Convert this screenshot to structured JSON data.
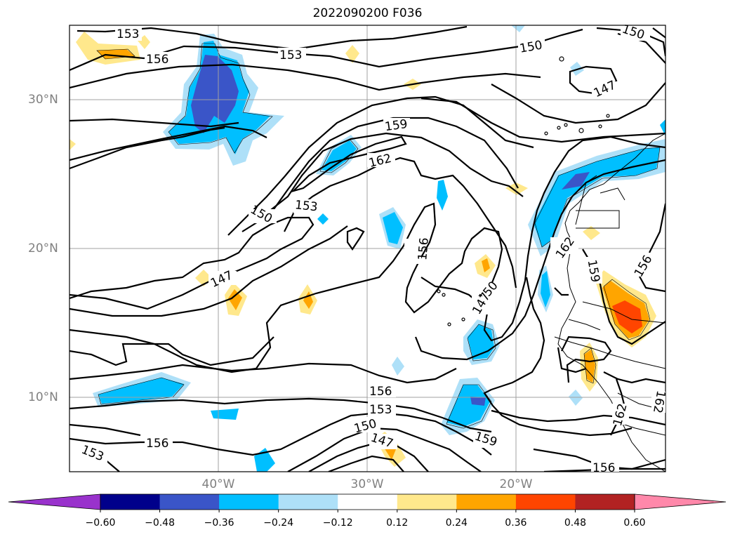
{
  "title": "2022090200 F036",
  "lat_labels": [
    "30°N",
    "20°N",
    "10°N"
  ],
  "lon_labels": [
    "40°W",
    "30°W",
    "20°W"
  ],
  "contour_labels": [
    "153",
    "156",
    "153",
    "150",
    "150",
    "147",
    "159",
    "162",
    "153",
    "150",
    "156",
    "147",
    "150",
    "147",
    "156",
    "153",
    "150",
    "159",
    "153",
    "147",
    "156",
    "162",
    "159",
    "156",
    "156",
    "162",
    "162"
  ],
  "colorbar": {
    "ticks": [
      "−0.60",
      "−0.48",
      "−0.36",
      "−0.24",
      "−0.12",
      "0.12",
      "0.24",
      "0.36",
      "0.48",
      "0.60"
    ],
    "colors": [
      "#9932cc",
      "#00008b",
      "#3a55c8",
      "#00bfff",
      "#aee0f8",
      "#ffffff",
      "#ffe88c",
      "#ffa500",
      "#ff4500",
      "#b22222",
      "#ff88aa"
    ]
  }
}
